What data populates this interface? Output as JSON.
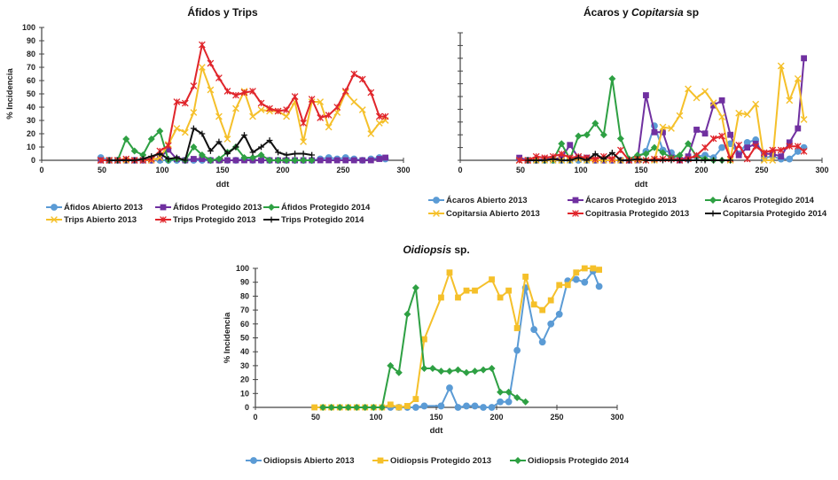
{
  "chart_data": [
    {
      "id": "afidos-trips",
      "type": "line",
      "title_parts": [
        {
          "text": "Áfidos y Trips",
          "italic": false
        }
      ],
      "xlabel": "ddt",
      "ylabel": "% Incidencia",
      "xlim": [
        0,
        300
      ],
      "ylim": [
        0,
        100
      ],
      "xticks": [
        0,
        50,
        100,
        150,
        200,
        250,
        300
      ],
      "yticks": [
        0,
        10,
        20,
        30,
        40,
        50,
        60,
        70,
        80,
        90,
        100
      ],
      "show_ytick_labels": true,
      "grid": false,
      "legend_position": "bottom",
      "series": [
        {
          "name": "Áfidos Abierto 2013",
          "color": "#5b9bd5",
          "marker": "circle",
          "x": [
            49,
            56,
            63,
            70,
            77,
            84,
            91,
            98,
            105,
            112,
            119,
            126,
            133,
            140,
            147,
            154,
            161,
            168,
            175,
            182,
            189,
            196,
            203,
            210,
            217,
            224,
            231,
            238,
            245,
            252,
            259,
            266,
            273,
            280,
            285
          ],
          "y": [
            2,
            0,
            0,
            0,
            0,
            0,
            0,
            0,
            0,
            0,
            0,
            0,
            0,
            0,
            0,
            0,
            0,
            1,
            0,
            0,
            0,
            0,
            0,
            0,
            0,
            0,
            1,
            2,
            1,
            2,
            1,
            0,
            1,
            2,
            1
          ]
        },
        {
          "name": "Áfidos Protegido 2013",
          "color": "#7030a0",
          "marker": "square",
          "x": [
            49,
            56,
            63,
            70,
            77,
            84,
            91,
            98,
            105,
            112,
            119,
            126,
            133,
            140,
            147,
            154,
            161,
            168,
            175,
            182,
            189,
            196,
            203,
            210,
            217,
            224,
            231,
            238,
            245,
            252,
            259,
            266,
            273,
            280,
            285
          ],
          "y": [
            0,
            0,
            0,
            0,
            0,
            0,
            0,
            2,
            8,
            1,
            0,
            1,
            1,
            0,
            0,
            0,
            0,
            0,
            0,
            0,
            0,
            0,
            0,
            0,
            0,
            0,
            0,
            0,
            0,
            0,
            0,
            0,
            0,
            1,
            2
          ]
        },
        {
          "name": "Áfidos Protegido 2014",
          "color": "#2ea043",
          "marker": "diamond",
          "x": [
            56,
            63,
            70,
            77,
            84,
            91,
            98,
            105,
            112,
            119,
            126,
            133,
            140,
            147,
            154,
            161,
            168,
            175,
            182,
            189,
            196,
            203,
            210,
            217,
            224
          ],
          "y": [
            0,
            0,
            16,
            7,
            4,
            16,
            22,
            0,
            1,
            0,
            10,
            4,
            0,
            1,
            6,
            10,
            2,
            2,
            4,
            0,
            0,
            0,
            0,
            0,
            0
          ]
        },
        {
          "name": "Trips Abierto 2013",
          "color": "#f5c02a",
          "marker": "x",
          "x": [
            49,
            56,
            63,
            70,
            77,
            84,
            91,
            98,
            105,
            112,
            119,
            126,
            133,
            140,
            147,
            154,
            161,
            168,
            175,
            182,
            189,
            196,
            203,
            210,
            217,
            224,
            231,
            238,
            245,
            252,
            259,
            266,
            273,
            280,
            285
          ],
          "y": [
            0,
            0,
            0,
            0,
            0,
            0,
            0,
            2,
            12,
            24,
            21,
            36,
            70,
            53,
            33,
            16,
            39,
            52,
            33,
            38,
            37,
            37,
            33,
            44,
            14,
            44,
            44,
            25,
            36,
            51,
            44,
            38,
            20,
            28,
            30
          ]
        },
        {
          "name": "Trips Protegido 2013",
          "color": "#e0252b",
          "marker": "star",
          "x": [
            49,
            56,
            63,
            70,
            77,
            84,
            91,
            98,
            105,
            112,
            119,
            126,
            133,
            140,
            147,
            154,
            161,
            168,
            175,
            182,
            189,
            196,
            203,
            210,
            217,
            224,
            231,
            238,
            245,
            252,
            259,
            266,
            273,
            280,
            285
          ],
          "y": [
            0,
            0,
            0,
            1,
            0,
            0,
            1,
            7,
            11,
            44,
            43,
            56,
            87,
            73,
            62,
            52,
            49,
            51,
            52,
            43,
            39,
            37,
            38,
            48,
            28,
            46,
            32,
            34,
            40,
            52,
            65,
            61,
            51,
            33,
            33
          ]
        },
        {
          "name": "Trips Protegido 2014",
          "color": "#111111",
          "marker": "plus",
          "x": [
            56,
            63,
            70,
            77,
            84,
            91,
            98,
            105,
            112,
            119,
            126,
            133,
            140,
            147,
            154,
            161,
            168,
            175,
            182,
            189,
            196,
            203,
            210,
            217,
            224
          ],
          "y": [
            0,
            0,
            0,
            0,
            1,
            3,
            5,
            1,
            2,
            0,
            24,
            20,
            7,
            14,
            5,
            10,
            19,
            6,
            10,
            15,
            6,
            4,
            5,
            5,
            4
          ]
        }
      ]
    },
    {
      "id": "acaros-copitarsia",
      "type": "line",
      "title_parts": [
        {
          "text": "Ácaros y ",
          "italic": false
        },
        {
          "text": "Copitarsia",
          "italic": true
        },
        {
          "text": " sp",
          "italic": false
        }
      ],
      "xlabel": "ddt",
      "ylabel": "",
      "xlim": [
        0,
        300
      ],
      "ylim": [
        0,
        100
      ],
      "xticks": [
        0,
        50,
        100,
        150,
        200,
        250,
        300
      ],
      "yticks": [
        0,
        10,
        20,
        30,
        40,
        50,
        60,
        70,
        80,
        90,
        100
      ],
      "show_ytick_labels": false,
      "grid": false,
      "legend_position": "bottom",
      "series": [
        {
          "name": "Ácaros Abierto 2013",
          "color": "#5b9bd5",
          "marker": "circle",
          "x": [
            49,
            56,
            63,
            70,
            77,
            84,
            91,
            98,
            105,
            112,
            119,
            126,
            133,
            140,
            147,
            154,
            161,
            168,
            175,
            182,
            189,
            196,
            203,
            210,
            217,
            224,
            231,
            238,
            245,
            252,
            259,
            266,
            273,
            280,
            285
          ],
          "y": [
            1,
            0,
            0,
            0,
            0,
            0,
            0,
            0,
            0,
            0,
            0,
            0,
            0,
            0,
            2,
            7,
            27,
            8,
            6,
            1,
            1,
            3,
            4,
            2,
            10,
            13,
            5,
            14,
            16,
            2,
            3,
            1,
            1,
            7,
            10
          ]
        },
        {
          "name": "Ácaros Protegido 2013",
          "color": "#7030a0",
          "marker": "square",
          "x": [
            49,
            56,
            63,
            70,
            77,
            84,
            91,
            98,
            105,
            112,
            119,
            126,
            133,
            140,
            147,
            154,
            161,
            168,
            175,
            182,
            189,
            196,
            203,
            210,
            217,
            224,
            231,
            238,
            245,
            252,
            259,
            266,
            273,
            280,
            285
          ],
          "y": [
            2,
            0,
            0,
            1,
            1,
            2,
            12,
            2,
            2,
            0,
            0,
            0,
            0,
            0,
            0,
            51,
            22,
            22,
            2,
            0,
            3,
            24,
            21,
            43,
            47,
            20,
            4,
            10,
            13,
            5,
            5,
            3,
            14,
            25,
            80
          ]
        },
        {
          "name": "Ácaros Protegido 2014",
          "color": "#2ea043",
          "marker": "diamond",
          "x": [
            56,
            63,
            70,
            77,
            84,
            91,
            98,
            105,
            112,
            119,
            126,
            133,
            140,
            147,
            154,
            161,
            168,
            175,
            182,
            189,
            196,
            203,
            210,
            217,
            224
          ],
          "y": [
            0,
            0,
            0,
            0,
            13,
            1,
            19,
            20,
            29,
            20,
            64,
            17,
            1,
            4,
            5,
            10,
            6,
            2,
            4,
            13,
            3,
            1,
            0,
            0,
            0
          ]
        },
        {
          "name": "Copitarsia Abierto 2013",
          "color": "#f5c02a",
          "marker": "x",
          "x": [
            49,
            56,
            63,
            70,
            77,
            84,
            91,
            98,
            105,
            112,
            119,
            126,
            133,
            140,
            147,
            154,
            161,
            168,
            175,
            182,
            189,
            196,
            203,
            210,
            217,
            224,
            231,
            238,
            245,
            252,
            259,
            266,
            273,
            280,
            285
          ],
          "y": [
            0,
            0,
            0,
            0,
            0,
            0,
            0,
            1,
            0,
            0,
            0,
            0,
            0,
            0,
            0,
            0,
            0,
            26,
            25,
            35,
            56,
            49,
            54,
            45,
            34,
            0,
            37,
            36,
            44,
            0,
            0,
            74,
            47,
            64,
            32
          ]
        },
        {
          "name": "Copitrasia Protegido 2013",
          "color": "#e0252b",
          "marker": "star",
          "x": [
            49,
            56,
            63,
            70,
            77,
            84,
            91,
            98,
            105,
            112,
            119,
            126,
            133,
            140,
            147,
            154,
            161,
            168,
            175,
            182,
            189,
            196,
            203,
            210,
            217,
            224,
            231,
            238,
            245,
            252,
            259,
            266,
            273,
            280,
            285
          ],
          "y": [
            0,
            0,
            3,
            2,
            3,
            5,
            2,
            3,
            2,
            1,
            3,
            1,
            8,
            0,
            1,
            0,
            1,
            1,
            1,
            0,
            1,
            4,
            10,
            17,
            19,
            1,
            12,
            1,
            11,
            6,
            8,
            8,
            11,
            11,
            7
          ]
        },
        {
          "name": "Copitarsia Protegido 2014",
          "color": "#111111",
          "marker": "plus",
          "x": [
            56,
            63,
            70,
            77,
            84,
            91,
            98,
            105,
            112,
            119,
            126,
            133,
            140,
            147,
            154,
            161,
            168,
            175,
            182,
            189,
            196,
            203,
            210,
            217,
            224
          ],
          "y": [
            0,
            0,
            0,
            1,
            0,
            0,
            2,
            0,
            5,
            1,
            6,
            0,
            0,
            1,
            0,
            0,
            0,
            0,
            0,
            0,
            0,
            0,
            0,
            0,
            0
          ]
        }
      ]
    },
    {
      "id": "oidiopsis",
      "type": "line",
      "title_parts": [
        {
          "text": "Oidiopsis",
          "italic": true
        },
        {
          "text": " sp.",
          "italic": false
        }
      ],
      "xlabel": "ddt",
      "ylabel": "% Incidencia",
      "xlim": [
        0,
        300
      ],
      "ylim": [
        0,
        100
      ],
      "xticks": [
        0,
        50,
        100,
        150,
        200,
        250,
        300
      ],
      "yticks": [
        0,
        10,
        20,
        30,
        40,
        50,
        60,
        70,
        80,
        90,
        100
      ],
      "show_ytick_labels": true,
      "grid": false,
      "legend_position": "bottom",
      "series": [
        {
          "name": "Oidiopsis Abierto 2013",
          "color": "#5b9bd5",
          "marker": "circle",
          "x": [
            112,
            119,
            126,
            133,
            140,
            154,
            161,
            168,
            175,
            182,
            189,
            196,
            203,
            210,
            217,
            224,
            231,
            238,
            245,
            252,
            259,
            266,
            273,
            280,
            285
          ],
          "y": [
            0,
            0,
            0,
            0,
            1,
            1,
            14,
            0,
            1,
            1,
            0,
            0,
            4,
            4,
            41,
            86,
            56,
            47,
            60,
            67,
            91,
            92,
            90,
            98,
            87
          ]
        },
        {
          "name": "Oidiopsis Protegido 2013",
          "color": "#f5c02a",
          "marker": "square",
          "x": [
            49,
            56,
            63,
            70,
            77,
            84,
            91,
            98,
            105,
            112,
            119,
            126,
            133,
            140,
            154,
            161,
            168,
            175,
            182,
            196,
            203,
            210,
            217,
            224,
            231,
            238,
            245,
            252,
            259,
            266,
            273,
            280,
            285
          ],
          "y": [
            0,
            0,
            0,
            0,
            0,
            0,
            0,
            0,
            0,
            2,
            0,
            1,
            6,
            49,
            79,
            97,
            79,
            84,
            84,
            92,
            79,
            84,
            57,
            94,
            74,
            70,
            77,
            88,
            88,
            97,
            100,
            100,
            99
          ]
        },
        {
          "name": "Oidiopsis Protegido 2014",
          "color": "#2ea043",
          "marker": "diamond",
          "x": [
            56,
            63,
            70,
            77,
            84,
            91,
            98,
            105,
            112,
            119,
            126,
            133,
            140,
            147,
            154,
            161,
            168,
            175,
            182,
            189,
            196,
            203,
            210,
            217,
            224
          ],
          "y": [
            0,
            0,
            0,
            0,
            0,
            0,
            0,
            0,
            30,
            25,
            67,
            86,
            28,
            28,
            26,
            26,
            27,
            25,
            26,
            27,
            28,
            11,
            11,
            7,
            4
          ]
        }
      ]
    }
  ]
}
